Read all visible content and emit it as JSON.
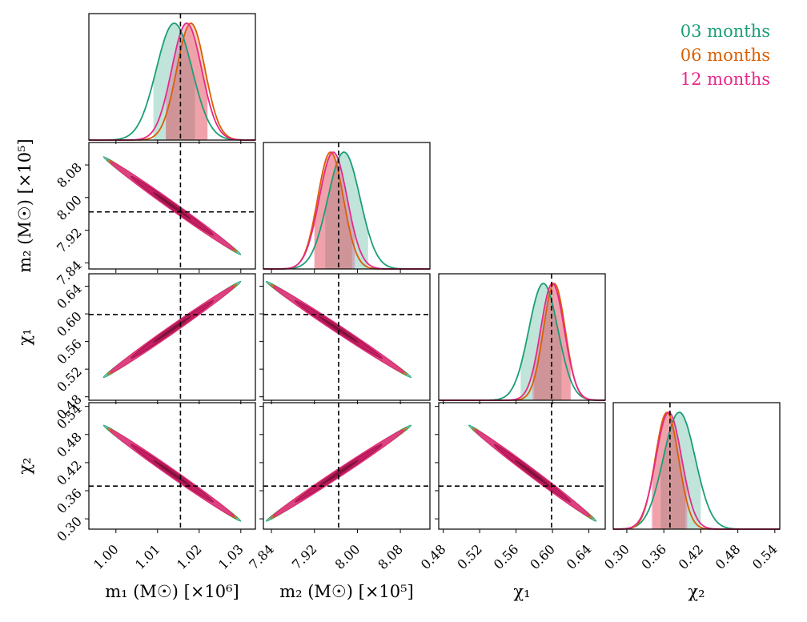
{
  "chart_data": {
    "type": "corner",
    "parameters": [
      {
        "id": "m1",
        "label": "m₁ (M☉) [×10⁶]",
        "range": [
          0.9935,
          1.0335
        ],
        "ticks": [
          1.0,
          1.01,
          1.02,
          1.03
        ],
        "tick_labels": [
          "1.00",
          "1.01",
          "1.02",
          "1.03"
        ],
        "truth": 1.0155
      },
      {
        "id": "m2",
        "label": "m₂ (M☉) [×10⁵]",
        "range": [
          7.825,
          8.135
        ],
        "ticks": [
          7.84,
          7.92,
          8.0,
          8.08
        ],
        "tick_labels": [
          "7.84",
          "7.92",
          "8.00",
          "8.08"
        ],
        "truth": 7.965
      },
      {
        "id": "chi1",
        "label": "χ₁",
        "range": [
          0.475,
          0.658
        ],
        "ticks": [
          0.48,
          0.52,
          0.56,
          0.6,
          0.64
        ],
        "tick_labels": [
          "0.48",
          "0.52",
          "0.56",
          "0.60",
          "0.64"
        ],
        "truth": 0.599
      },
      {
        "id": "chi2",
        "label": "χ₂",
        "range": [
          0.278,
          0.548
        ],
        "ticks": [
          0.3,
          0.36,
          0.42,
          0.48,
          0.54
        ],
        "tick_labels": [
          "0.30",
          "0.36",
          "0.42",
          "0.48",
          "0.54"
        ],
        "truth": 0.37
      }
    ],
    "series": [
      {
        "name": "03 months",
        "color": "#1b9e77",
        "marginals": {
          "m1": {
            "mean": 1.014,
            "sd": 0.0043,
            "interval": [
              1.009,
              1.019
            ]
          },
          "m2": {
            "mean": 7.975,
            "sd": 0.03,
            "interval": [
              7.94,
              8.02
            ]
          },
          "chi1": {
            "mean": 0.59,
            "sd": 0.016,
            "interval": [
              0.565,
              0.61
            ]
          },
          "chi2": {
            "mean": 0.385,
            "sd": 0.026,
            "interval": [
              0.355,
              0.42
            ]
          }
        }
      },
      {
        "name": "06 months",
        "color": "#d95f02",
        "marginals": {
          "m1": {
            "mean": 1.018,
            "sd": 0.0034,
            "interval": [
              1.012,
              1.022
            ]
          },
          "m2": {
            "mean": 7.95,
            "sd": 0.024,
            "interval": [
              7.92,
              7.99
            ]
          },
          "chi1": {
            "mean": 0.602,
            "sd": 0.012,
            "interval": [
              0.58,
              0.62
            ]
          },
          "chi2": {
            "mean": 0.365,
            "sd": 0.019,
            "interval": [
              0.342,
              0.395
            ]
          }
        }
      },
      {
        "name": "12 months",
        "color": "#e7298a",
        "marginals": {
          "m1": {
            "mean": 1.017,
            "sd": 0.0036,
            "interval": [
              1.012,
              1.022
            ]
          },
          "m2": {
            "mean": 7.955,
            "sd": 0.026,
            "interval": [
              7.92,
              7.995
            ]
          },
          "chi1": {
            "mean": 0.6,
            "sd": 0.013,
            "interval": [
              0.578,
              0.62
            ]
          },
          "chi2": {
            "mean": 0.368,
            "sd": 0.021,
            "interval": [
              0.34,
              0.398
            ]
          }
        }
      }
    ],
    "correlations": [
      {
        "pair": [
          "m1",
          "m2"
        ],
        "direction": "negative",
        "from": [
          0.997,
          8.1
        ],
        "to": [
          1.03,
          7.86
        ]
      },
      {
        "pair": [
          "m1",
          "chi1"
        ],
        "direction": "positive",
        "from": [
          0.997,
          0.508
        ],
        "to": [
          1.03,
          0.647
        ]
      },
      {
        "pair": [
          "m2",
          "chi1"
        ],
        "direction": "negative",
        "from": [
          7.83,
          0.647
        ],
        "to": [
          8.1,
          0.508
        ]
      },
      {
        "pair": [
          "m1",
          "chi2"
        ],
        "direction": "negative",
        "from": [
          0.997,
          0.5
        ],
        "to": [
          1.03,
          0.295
        ]
      },
      {
        "pair": [
          "m2",
          "chi2"
        ],
        "direction": "positive",
        "from": [
          7.83,
          0.295
        ],
        "to": [
          8.1,
          0.5
        ]
      },
      {
        "pair": [
          "chi1",
          "chi2"
        ],
        "direction": "negative",
        "from": [
          0.508,
          0.5
        ],
        "to": [
          0.648,
          0.295
        ]
      }
    ],
    "legend_position": "top-right",
    "truth_line_style": "dashed black"
  }
}
